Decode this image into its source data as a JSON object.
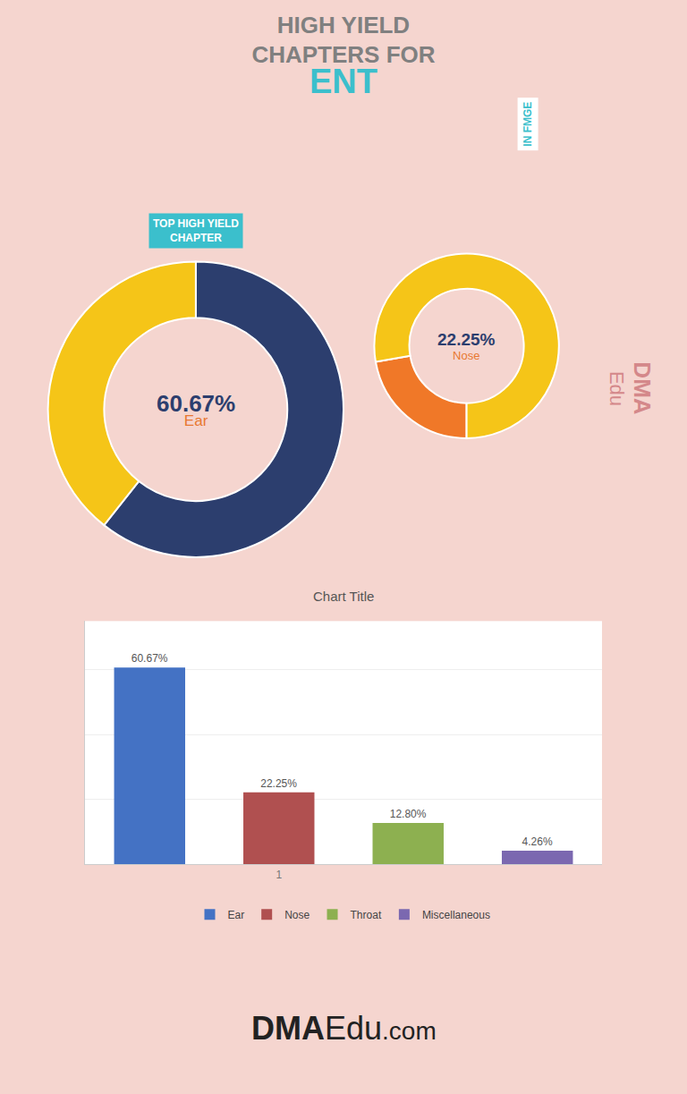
{
  "chart_data": [
    {
      "type": "pie",
      "title": "HIGH YIELD\nCHAPTERS FOR\nENT",
      "categories": [
        "Ear",
        null
      ],
      "values": [
        60.67,
        39.33
      ],
      "value_labels": [
        "60.67%",
        null
      ],
      "colors": [
        "#2c3e6e",
        "#f5c518"
      ],
      "data_labels": true,
      "annotations": [
        "IN FMGE",
        "TOP HIGH YIELD\nCHAPTER",
        "DMA",
        "Edu",
        "DMA",
        "Edu",
        ".com"
      ]
    },
    {
      "type": "pie",
      "categories": [
        "Nose",
        null
      ],
      "values": [
        22.25,
        77.75
      ],
      "value_labels": [
        "22.25%",
        null
      ],
      "colors": [
        "#f07828",
        "#f5c518"
      ],
      "data_labels": true
    },
    {
      "type": "bar",
      "title": "Chart Title",
      "categories": [
        null,
        "1",
        null,
        null
      ],
      "series": [
        {
          "name": "Ear",
          "color": "#4472c4",
          "values": [
            60.67,
            null,
            null,
            null
          ],
          "value_labels": [
            "60.67%",
            null,
            null,
            null
          ]
        },
        {
          "name": "Nose",
          "color": "#b05050",
          "values": [
            null,
            22.25,
            null,
            null
          ],
          "value_labels": [
            null,
            "22.25%",
            null,
            null
          ]
        },
        {
          "name": "Throat",
          "color": "#8db050",
          "values": [
            null,
            null,
            12.8,
            null
          ],
          "value_labels": [
            null,
            null,
            "12.80%",
            null
          ]
        },
        {
          "name": "Miscellaneous",
          "color": "#7b68b0",
          "values": [
            null,
            null,
            null,
            4.26
          ],
          "value_labels": [
            null,
            null,
            null,
            "4.26%"
          ]
        }
      ],
      "ylim": [
        0,
        75
      ],
      "yticks": [
        20,
        40,
        60
      ],
      "grid": true,
      "legend": "bottom",
      "tick_labels": "x",
      "data_labels": true
    }
  ]
}
